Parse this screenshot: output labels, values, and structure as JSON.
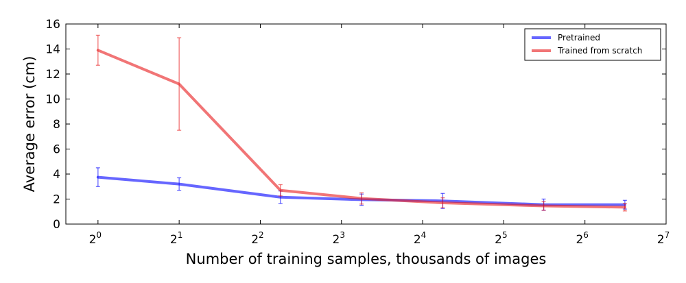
{
  "chart_data": {
    "type": "line",
    "xlabel": "Number of training samples, thousands of images",
    "ylabel": "Average error (cm)",
    "x_scale": "log2",
    "xlim": [
      0.76,
      128
    ],
    "ylim": [
      0,
      16
    ],
    "x_ticks": [
      {
        "base": "2",
        "exp": "0"
      },
      {
        "base": "2",
        "exp": "1"
      },
      {
        "base": "2",
        "exp": "2"
      },
      {
        "base": "2",
        "exp": "3"
      },
      {
        "base": "2",
        "exp": "4"
      },
      {
        "base": "2",
        "exp": "5"
      },
      {
        "base": "2",
        "exp": "6"
      },
      {
        "base": "2",
        "exp": "7"
      }
    ],
    "y_ticks": [
      "0",
      "2",
      "4",
      "6",
      "8",
      "10",
      "12",
      "14",
      "16"
    ],
    "legend_position": "top-right",
    "grid": false,
    "x": [
      1,
      2,
      4.75,
      9.5,
      19,
      45,
      90
    ],
    "series": [
      {
        "name": "Pretrained",
        "color": "#0000ff",
        "values": [
          3.75,
          3.2,
          2.15,
          1.95,
          1.85,
          1.55,
          1.55
        ],
        "error": [
          0.75,
          0.5,
          0.5,
          0.45,
          0.6,
          0.45,
          0.35
        ]
      },
      {
        "name": "Trained from scratch",
        "color": "#e8191b",
        "values": [
          13.9,
          11.2,
          2.7,
          2.05,
          1.7,
          1.45,
          1.35
        ],
        "error": [
          1.2,
          3.7,
          0.45,
          0.45,
          0.4,
          0.35,
          0.3
        ]
      }
    ]
  }
}
